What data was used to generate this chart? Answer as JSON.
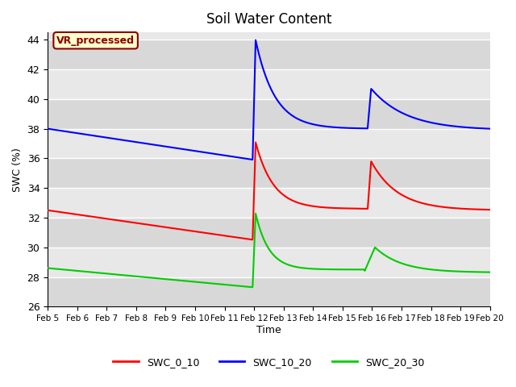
{
  "title": "Soil Water Content",
  "xlabel": "Time",
  "ylabel": "SWC (%)",
  "ylim": [
    26,
    44.5
  ],
  "xlim": [
    0,
    15
  ],
  "x_tick_labels": [
    "Feb 5",
    "Feb 6",
    "Feb 7",
    "Feb 8",
    "Feb 9",
    "Feb 10",
    "Feb 11",
    "Feb 12",
    "Feb 13",
    "Feb 14",
    "Feb 15",
    "Feb 16",
    "Feb 17",
    "Feb 18",
    "Feb 19",
    "Feb 20"
  ],
  "background_color": "#e8e8e8",
  "grid_color": "#ffffff",
  "annotation_text": "VR_processed",
  "annotation_color": "#8B0000",
  "annotation_bg": "#ffffcc",
  "legend_entries": [
    "SWC_0_10",
    "SWC_10_20",
    "SWC_20_30"
  ],
  "line_colors": [
    "#ff0000",
    "#0000ff",
    "#00cc00"
  ]
}
